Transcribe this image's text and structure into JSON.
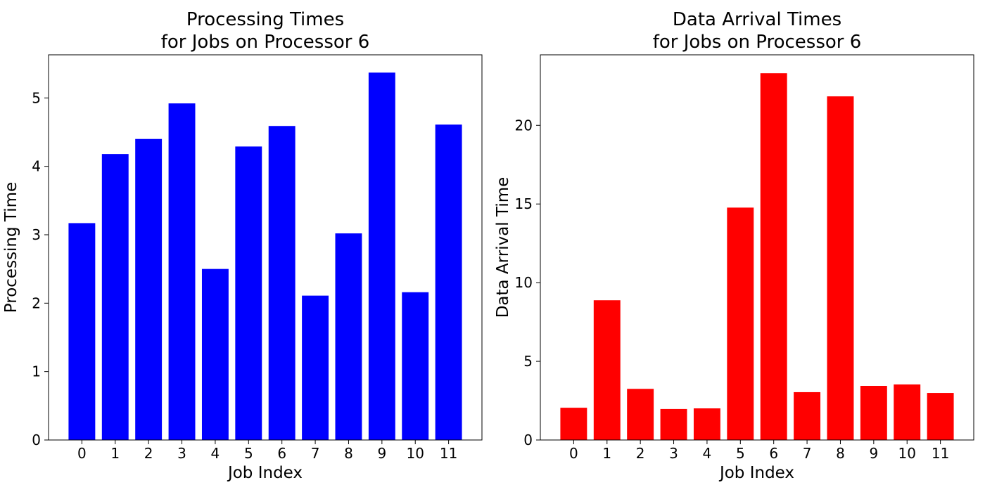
{
  "chart_data": [
    {
      "type": "bar",
      "title_lines": [
        "Processing Times",
        "for Jobs on Processor 6"
      ],
      "xlabel": "Job Index",
      "ylabel": "Processing Time",
      "categories": [
        "0",
        "1",
        "2",
        "3",
        "4",
        "5",
        "6",
        "7",
        "8",
        "9",
        "10",
        "11"
      ],
      "values": [
        3.17,
        4.18,
        4.4,
        4.92,
        2.5,
        4.29,
        4.59,
        2.11,
        3.02,
        5.37,
        2.16,
        4.61
      ],
      "ylim": [
        0,
        5.63
      ],
      "yticks": [
        0,
        1,
        2,
        3,
        4,
        5
      ],
      "color": "#0000ff",
      "grid": false,
      "legend": "none"
    },
    {
      "type": "bar",
      "title_lines": [
        "Data Arrival Times",
        "for Jobs on Processor 6"
      ],
      "xlabel": "Job Index",
      "ylabel": "Data Arrival Time",
      "categories": [
        "0",
        "1",
        "2",
        "3",
        "4",
        "5",
        "6",
        "7",
        "8",
        "9",
        "10",
        "11"
      ],
      "values": [
        2.05,
        8.88,
        3.25,
        1.97,
        2.01,
        14.77,
        23.31,
        3.04,
        21.84,
        3.44,
        3.53,
        2.99
      ],
      "ylim": [
        0,
        24.48
      ],
      "yticks": [
        0,
        5,
        10,
        15,
        20
      ],
      "color": "#ff0000",
      "grid": false,
      "legend": "none"
    }
  ]
}
